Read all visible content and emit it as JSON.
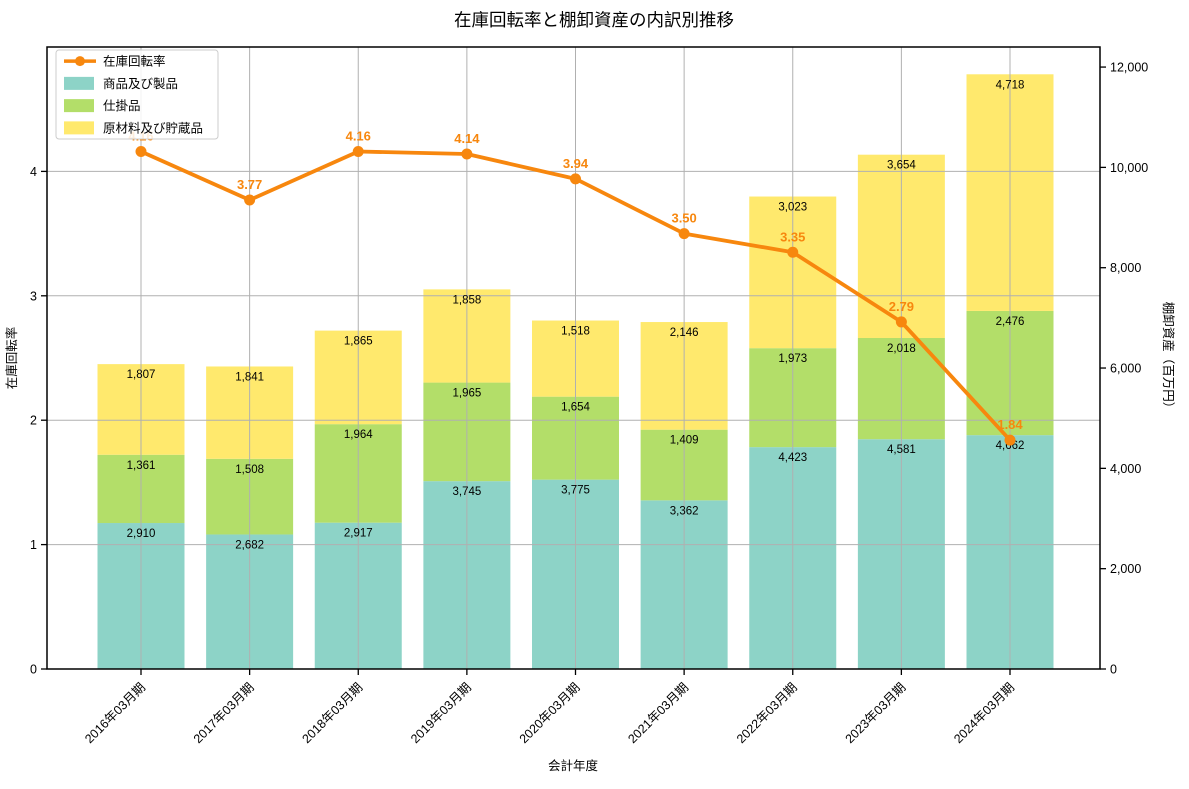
{
  "title": "在庫回転率と棚卸資産の内訳別推移",
  "chart_data": {
    "type": "bar",
    "combo": "stacked-bar-with-line-overlay",
    "title": "在庫回転率と棚卸資産の内訳別推移",
    "xlabel": "会計年度",
    "ylabel_left": "在庫回転率",
    "ylabel_right": "棚卸資産（百万円）",
    "categories": [
      "2016年03月期",
      "2017年03月期",
      "2018年03月期",
      "2019年03月期",
      "2020年03月期",
      "2021年03月期",
      "2022年03月期",
      "2023年03月期",
      "2024年03月期"
    ],
    "series": [
      {
        "name": "在庫回転率",
        "type": "line",
        "axis": "left",
        "color": "#f7870e",
        "values": [
          4.16,
          3.77,
          4.16,
          4.14,
          3.94,
          3.5,
          3.35,
          2.79,
          1.84
        ]
      },
      {
        "name": "商品及び製品",
        "type": "bar",
        "axis": "right",
        "color": "#8dd3c7",
        "values": [
          2910,
          2682,
          2917,
          3745,
          3775,
          3362,
          4423,
          4581,
          4662
        ]
      },
      {
        "name": "仕掛品",
        "type": "bar",
        "axis": "right",
        "color": "#b3de69",
        "values": [
          1361,
          1508,
          1964,
          1965,
          1654,
          1409,
          1973,
          2018,
          2476
        ]
      },
      {
        "name": "原材料及び貯蔵品",
        "type": "bar",
        "axis": "right",
        "color": "#ffe96d",
        "values": [
          1807,
          1841,
          1865,
          1858,
          1518,
          2146,
          3023,
          3654,
          4718
        ]
      }
    ],
    "legend": [
      "在庫回転率",
      "商品及び製品",
      "仕掛品",
      "原材料及び貯蔵品"
    ],
    "legend_position": "upper left",
    "ylim_left": [
      0,
      5
    ],
    "yticks_left": [
      0,
      1,
      2,
      3,
      4
    ],
    "ylim_right": [
      0,
      12400
    ],
    "yticks_right": [
      0,
      2000,
      4000,
      6000,
      8000,
      10000,
      12000
    ],
    "grid": true
  },
  "colors": {
    "line_orange": "#f7870e",
    "bar_teal": "#8dd3c7",
    "bar_green": "#b3de69",
    "bar_yellow": "#ffe96d",
    "grid_gray": "#b0b0b0",
    "axis_black": "#000000",
    "legend_border": "#cccccc"
  }
}
